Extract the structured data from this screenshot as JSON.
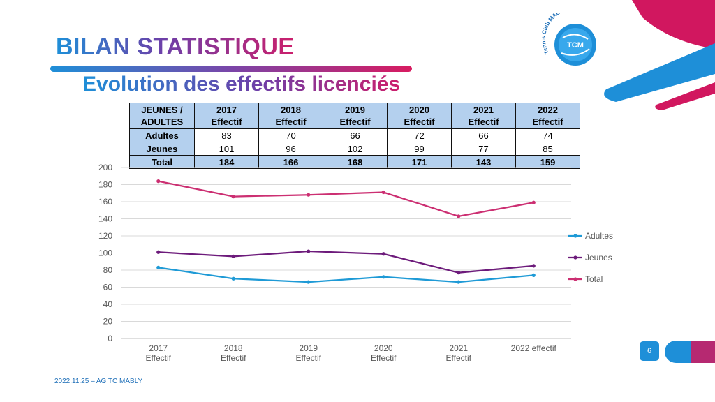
{
  "slide": {
    "title": "BILAN STATISTIQUE",
    "subtitle": "Evolution des effectifs licenciés",
    "footer": "2022.11.25 – AG TC MABLY",
    "page_number": "6",
    "logo": {
      "text_main": "TCM",
      "text_arc": "Tennis Club MABLY"
    },
    "colors": {
      "blue": "#1e8fd8",
      "purple": "#6d1b7b",
      "magenta": "#cc1f6c",
      "table_header": "#b4d0ee"
    }
  },
  "table": {
    "corner_header": [
      "JEUNES /",
      "ADULTES"
    ],
    "columns": [
      [
        "2017",
        "Effectif"
      ],
      [
        "2018",
        "Effectif"
      ],
      [
        "2019",
        "Effectif"
      ],
      [
        "2020",
        "Effectif"
      ],
      [
        "2021",
        "Effectif"
      ],
      [
        "2022",
        "Effectif"
      ]
    ],
    "rows": [
      {
        "label": "Adultes",
        "values": [
          "83",
          "70",
          "66",
          "72",
          "66",
          "74"
        ]
      },
      {
        "label": "Jeunes",
        "values": [
          "101",
          "96",
          "102",
          "99",
          "77",
          "85"
        ]
      },
      {
        "label": "Total",
        "values": [
          "184",
          "166",
          "168",
          "171",
          "143",
          "159"
        ]
      }
    ]
  },
  "chart_data": {
    "type": "line",
    "categories": [
      [
        "2017",
        "Effectif"
      ],
      [
        "2018",
        "Effectif"
      ],
      [
        "2019",
        "Effectif"
      ],
      [
        "2020",
        "Effectif"
      ],
      [
        "2021",
        "Effectif"
      ],
      [
        "2022 effectif"
      ]
    ],
    "series": [
      {
        "name": "Adultes",
        "color": "#1e9ad6",
        "values": [
          83,
          70,
          66,
          72,
          66,
          74
        ]
      },
      {
        "name": "Jeunes",
        "color": "#6d1b7b",
        "values": [
          101,
          96,
          102,
          99,
          77,
          85
        ]
      },
      {
        "name": "Total",
        "color": "#cc2f72",
        "values": [
          184,
          166,
          168,
          171,
          143,
          159
        ]
      }
    ],
    "ylim": [
      0,
      200
    ],
    "yticks": [
      0,
      20,
      40,
      60,
      80,
      100,
      120,
      140,
      160,
      180,
      200
    ],
    "grid": true,
    "legend": "right"
  }
}
